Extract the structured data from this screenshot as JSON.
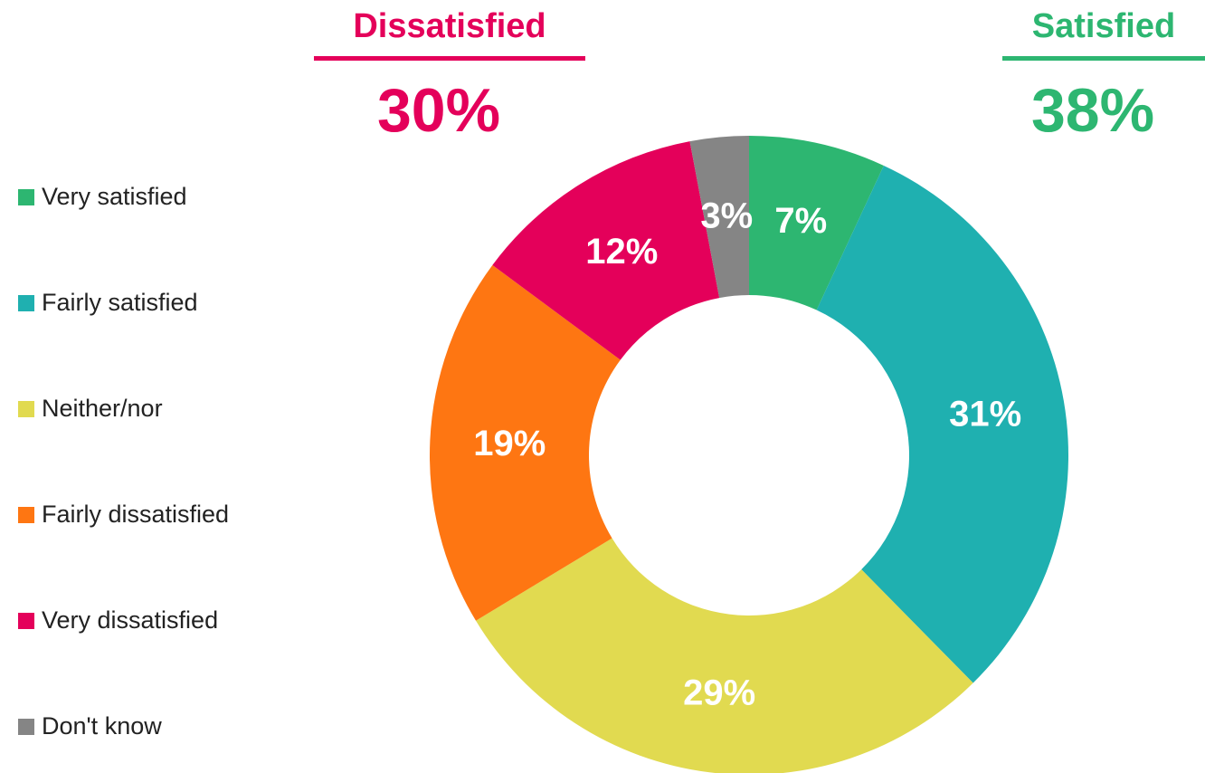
{
  "chart_data": {
    "type": "donut",
    "categories": [
      "Very satisfied",
      "Fairly satisfied",
      "Neither/nor",
      "Fairly dissatisfied",
      "Very dissatisfied",
      "Don't know"
    ],
    "values": [
      7,
      31,
      29,
      19,
      12,
      3
    ],
    "value_labels": [
      "7%",
      "31%",
      "29%",
      "19%",
      "12%",
      "3%"
    ],
    "colors": [
      "#2db671",
      "#1fb0b0",
      "#e1da50",
      "#fe7612",
      "#e4005a",
      "#858585"
    ],
    "annotations": [
      {
        "text": "Dissatisfied",
        "value": 30,
        "value_label": "30%",
        "color": "#e4005a"
      },
      {
        "text": "Satisfied",
        "value": 38,
        "value_label": "38%",
        "color": "#2db671"
      }
    ]
  }
}
